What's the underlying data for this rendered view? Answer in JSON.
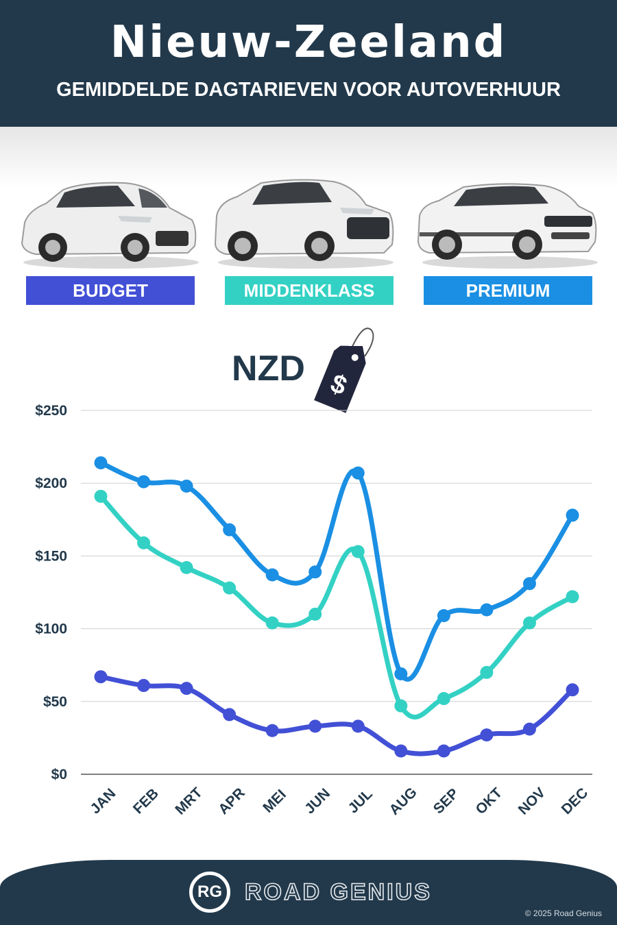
{
  "header": {
    "title": "Nieuw-Zeeland",
    "subtitle": "GEMIDDELDE DAGTARIEVEN VOOR AUTOVERHUUR"
  },
  "categories": [
    {
      "label": "BUDGET",
      "color": "#4250d6",
      "icon": "hatchback-car-icon"
    },
    {
      "label": "MIDDENKLASS",
      "color": "#33d1c4",
      "icon": "suv-car-icon"
    },
    {
      "label": "PREMIUM",
      "color": "#1a8fe3",
      "icon": "luxury-suv-car-icon"
    }
  ],
  "currency": {
    "label": "NZD",
    "icon": "price-tag-dollar-icon",
    "symbol": "$"
  },
  "chart_data": {
    "type": "line",
    "categories": [
      "JAN",
      "FEB",
      "MRT",
      "APR",
      "MEI",
      "JUN",
      "JUL",
      "AUG",
      "SEP",
      "OKT",
      "NOV",
      "DEC"
    ],
    "series": [
      {
        "name": "PREMIUM",
        "color": "#1a8fe3",
        "values": [
          214,
          201,
          198,
          168,
          137,
          139,
          207,
          69,
          109,
          113,
          131,
          178
        ]
      },
      {
        "name": "MIDDENKLASS",
        "color": "#33d1c4",
        "values": [
          191,
          159,
          142,
          128,
          104,
          110,
          153,
          47,
          52,
          70,
          104,
          122
        ]
      },
      {
        "name": "BUDGET",
        "color": "#4250d6",
        "values": [
          67,
          61,
          59,
          41,
          30,
          33,
          33,
          16,
          16,
          27,
          31,
          58
        ]
      }
    ],
    "yticks": [
      "$0",
      "$50",
      "$100",
      "$150",
      "$200",
      "$250"
    ],
    "ylim": [
      0,
      250
    ],
    "grid": true
  },
  "footer": {
    "logo_initials": "RG",
    "brand": "ROAD GENIUS",
    "copyright": "© 2025 Road Genius"
  }
}
